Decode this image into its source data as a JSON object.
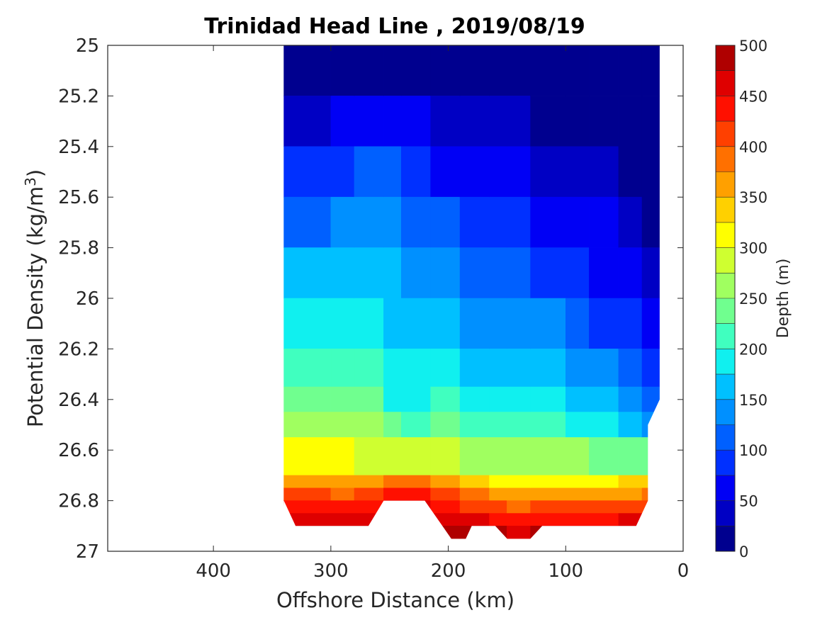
{
  "chart_data": {
    "type": "heatmap",
    "subtype": "filled-contour",
    "title": "Trinidad Head Line , 2019/08/19",
    "xlabel": "Offshore Distance (km)",
    "ylabel_main": "Potential Density (kg/m",
    "ylabel_sup": "3",
    "ylabel_tail": ")",
    "colorbar_label": "Depth (m)",
    "xlim": [
      490,
      0
    ],
    "ylim": [
      25,
      27
    ],
    "y_reversed": true,
    "x_reversed": true,
    "grid": false,
    "x_ticks": [
      {
        "value": 400,
        "label": "400"
      },
      {
        "value": 300,
        "label": "300"
      },
      {
        "value": 200,
        "label": "200"
      },
      {
        "value": 100,
        "label": "100"
      },
      {
        "value": 0,
        "label": "0"
      }
    ],
    "y_ticks": [
      {
        "value": 25,
        "label": "25"
      },
      {
        "value": 25.2,
        "label": "25.2"
      },
      {
        "value": 25.4,
        "label": "25.4"
      },
      {
        "value": 25.6,
        "label": "25.6"
      },
      {
        "value": 25.8,
        "label": "25.8"
      },
      {
        "value": 26,
        "label": "26"
      },
      {
        "value": 26.2,
        "label": "26.2"
      },
      {
        "value": 26.4,
        "label": "26.4"
      },
      {
        "value": 26.6,
        "label": "26.6"
      },
      {
        "value": 26.8,
        "label": "26.8"
      },
      {
        "value": 27,
        "label": "27"
      }
    ],
    "colorbar": {
      "min": 0,
      "max": 500,
      "step": 25,
      "ticks": [
        {
          "value": 0,
          "label": "0"
        },
        {
          "value": 50,
          "label": "50"
        },
        {
          "value": 100,
          "label": "100"
        },
        {
          "value": 150,
          "label": "150"
        },
        {
          "value": 200,
          "label": "200"
        },
        {
          "value": 250,
          "label": "250"
        },
        {
          "value": 300,
          "label": "300"
        },
        {
          "value": 350,
          "label": "350"
        },
        {
          "value": 400,
          "label": "400"
        },
        {
          "value": 450,
          "label": "450"
        },
        {
          "value": 500,
          "label": "500"
        }
      ],
      "colors": [
        "#00008f",
        "#0000c4",
        "#0000f5",
        "#0030ff",
        "#0060ff",
        "#0090ff",
        "#00c0ff",
        "#10f0ef",
        "#40ffbf",
        "#70ff8f",
        "#a0ff60",
        "#cfff30",
        "#ffff00",
        "#ffd000",
        "#ffa000",
        "#ff7000",
        "#ff4000",
        "#ff1000",
        "#df0000",
        "#af0000"
      ]
    },
    "stations": [
      {
        "x": 340,
        "d": [
          0,
          23,
          62,
          102,
          140,
          175,
          205,
          232,
          255,
          285,
          352,
          395,
          430,
          470,
          480,
          500
        ]
      },
      {
        "x": 300,
        "d": [
          0,
          28,
          70,
          110,
          145,
          175,
          205,
          230,
          255,
          280,
          335,
          380,
          420,
          462,
          480,
          500
        ]
      },
      {
        "x": 280,
        "d": [
          0,
          35,
          80,
          115,
          150,
          178,
          203,
          228,
          250,
          275,
          325,
          375,
          420,
          460,
          480,
          500
        ]
      },
      {
        "x": 255,
        "d": [
          0,
          45,
          105,
          135,
          160,
          175,
          185,
          200,
          222,
          255,
          320,
          410,
          440,
          470,
          480,
          500
        ]
      },
      {
        "x": 240,
        "d": [
          0,
          45,
          104,
          125,
          145,
          158,
          170,
          182,
          195,
          230,
          310,
          460,
          470,
          480,
          490,
          500
        ]
      },
      {
        "x": 215,
        "d": [
          0,
          30,
          60,
          90,
          120,
          145,
          170,
          190,
          215,
          255,
          330,
          420,
          435,
          465,
          480,
          500
        ]
      },
      {
        "x": 190,
        "d": [
          0,
          25,
          55,
          80,
          110,
          135,
          162,
          185,
          210,
          240,
          320,
          370,
          405,
          440,
          480,
          500
        ]
      },
      {
        "x": 165,
        "d": [
          0,
          22,
          50,
          72,
          100,
          125,
          150,
          175,
          198,
          232,
          305,
          345,
          385,
          430,
          465,
          500
        ]
      },
      {
        "x": 150,
        "d": [
          0,
          18,
          45,
          68,
          95,
          118,
          142,
          168,
          192,
          225,
          295,
          335,
          375,
          420,
          455,
          490
        ]
      },
      {
        "x": 130,
        "d": [
          0,
          15,
          40,
          60,
          85,
          110,
          138,
          162,
          187,
          220,
          290,
          340,
          380,
          420,
          455,
          490
        ]
      },
      {
        "x": 100,
        "d": [
          0,
          8,
          30,
          58,
          88,
          112,
          140,
          167,
          192,
          228,
          300,
          350,
          390,
          430,
          470,
          490
        ]
      },
      {
        "x": 80,
        "d": [
          0,
          5,
          28,
          48,
          72,
          95,
          120,
          145,
          170,
          205,
          280,
          325,
          375,
          420,
          460,
          490
        ]
      },
      {
        "x": 55,
        "d": [
          0,
          2,
          15,
          30,
          50,
          75,
          105,
          132,
          160,
          195,
          285,
          340,
          380,
          425,
          465,
          490
        ]
      },
      {
        "x": 35,
        "d": [
          0,
          0,
          8,
          18,
          32,
          50,
          72,
          95,
          130,
          178,
          310,
          365,
          405,
          445,
          480,
          500
        ]
      },
      {
        "x": 20,
        "d": [
          0,
          0,
          5,
          12,
          25,
          40,
          60,
          80,
          115,
          165,
          300,
          360,
          400,
          440,
          480,
          500
        ]
      }
    ],
    "density_levels": [
      25.0,
      25.2,
      25.4,
      25.6,
      25.8,
      26.0,
      26.2,
      26.35,
      26.45,
      26.55,
      26.7,
      26.75,
      26.8,
      26.85,
      26.9,
      26.95
    ],
    "bottom_outline": [
      [
        340,
        26.8
      ],
      [
        330,
        26.9
      ],
      [
        268,
        26.9
      ],
      [
        255,
        26.8
      ],
      [
        220,
        26.8
      ],
      [
        205,
        26.9
      ],
      [
        190,
        27.0
      ],
      [
        180,
        26.9
      ],
      [
        160,
        26.9
      ],
      [
        140,
        27.0
      ],
      [
        120,
        26.9
      ],
      [
        40,
        26.9
      ],
      [
        30,
        26.8
      ],
      [
        30,
        26.5
      ],
      [
        20,
        26.4
      ],
      [
        20,
        25.0
      ]
    ]
  }
}
